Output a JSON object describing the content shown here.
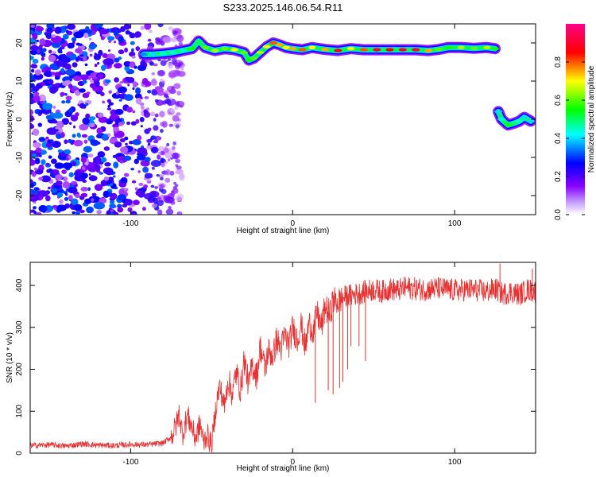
{
  "title": "S233.2025.146.06.54.R11",
  "chart_data": [
    {
      "type": "heatmap",
      "xlabel": "Height of straight line (km)",
      "ylabel": "Frequency (Hz)",
      "xlim": [
        -162,
        150
      ],
      "ylim": [
        -25,
        25
      ],
      "xticks": [
        -100,
        0,
        100
      ],
      "xtick_labels": [
        "-100",
        "0",
        "100"
      ],
      "yticks": [
        20,
        10,
        0,
        -10,
        -20
      ],
      "ytick_labels": [
        "20",
        "10",
        "0",
        "-10",
        "-20"
      ],
      "colorbar": {
        "label": "Normalized spectral amplitude",
        "ticks": [
          0.0,
          0.2,
          0.4,
          0.6,
          0.8
        ],
        "tick_labels": [
          "0.0",
          "0.2",
          "0.4",
          "0.6",
          "0.8"
        ],
        "range": [
          0,
          1
        ],
        "colormap": [
          "#ffffff",
          "#8800ff",
          "#0000ff",
          "#00ffff",
          "#00ff00",
          "#ffff00",
          "#ff0000",
          "#ff0088"
        ]
      },
      "noise_region": {
        "x": [
          -162,
          -68
        ],
        "y": [
          -25,
          25
        ],
        "amplitude_range": [
          0.05,
          0.35
        ]
      },
      "track": [
        {
          "x": -92,
          "y": 17.0,
          "a": 0.35
        },
        {
          "x": -86,
          "y": 17.0,
          "a": 0.4
        },
        {
          "x": -80,
          "y": 17.2,
          "a": 0.45
        },
        {
          "x": -74,
          "y": 17.5,
          "a": 0.45
        },
        {
          "x": -68,
          "y": 18.0,
          "a": 0.45
        },
        {
          "x": -62,
          "y": 18.5,
          "a": 0.55
        },
        {
          "x": -58,
          "y": 20.5,
          "a": 0.5
        },
        {
          "x": -54,
          "y": 18.8,
          "a": 0.6
        },
        {
          "x": -48,
          "y": 18.0,
          "a": 0.65
        },
        {
          "x": -42,
          "y": 18.5,
          "a": 0.6
        },
        {
          "x": -36,
          "y": 18.2,
          "a": 0.7
        },
        {
          "x": -30,
          "y": 17.5,
          "a": 0.6
        },
        {
          "x": -27,
          "y": 15.5,
          "a": 0.55
        },
        {
          "x": -24,
          "y": 16.0,
          "a": 0.6
        },
        {
          "x": -20,
          "y": 17.5,
          "a": 0.65
        },
        {
          "x": -16,
          "y": 19.0,
          "a": 0.7
        },
        {
          "x": -12,
          "y": 20.0,
          "a": 0.8
        },
        {
          "x": -8,
          "y": 19.5,
          "a": 0.75
        },
        {
          "x": -4,
          "y": 18.8,
          "a": 0.7
        },
        {
          "x": 0,
          "y": 18.5,
          "a": 0.75
        },
        {
          "x": 6,
          "y": 18.2,
          "a": 0.8
        },
        {
          "x": 12,
          "y": 18.8,
          "a": 0.7
        },
        {
          "x": 20,
          "y": 18.3,
          "a": 0.75
        },
        {
          "x": 28,
          "y": 18.0,
          "a": 0.85
        },
        {
          "x": 36,
          "y": 18.5,
          "a": 0.7
        },
        {
          "x": 44,
          "y": 18.2,
          "a": 0.8
        },
        {
          "x": 52,
          "y": 18.2,
          "a": 0.9
        },
        {
          "x": 60,
          "y": 18.2,
          "a": 0.85
        },
        {
          "x": 68,
          "y": 18.2,
          "a": 0.9
        },
        {
          "x": 76,
          "y": 18.2,
          "a": 0.9
        },
        {
          "x": 84,
          "y": 18.0,
          "a": 0.75
        },
        {
          "x": 90,
          "y": 18.3,
          "a": 0.6
        },
        {
          "x": 96,
          "y": 18.8,
          "a": 0.55
        },
        {
          "x": 104,
          "y": 18.8,
          "a": 0.65
        },
        {
          "x": 112,
          "y": 18.6,
          "a": 0.6
        },
        {
          "x": 120,
          "y": 18.8,
          "a": 0.65
        },
        {
          "x": 125,
          "y": 18.5,
          "a": 0.55
        }
      ],
      "track2": [
        {
          "x": 127,
          "y": 2.0,
          "a": 0.4
        },
        {
          "x": 129,
          "y": 0.0,
          "a": 0.45
        },
        {
          "x": 133,
          "y": -1.5,
          "a": 0.55
        },
        {
          "x": 137,
          "y": -1.0,
          "a": 0.5
        },
        {
          "x": 140,
          "y": -0.5,
          "a": 0.45
        },
        {
          "x": 143,
          "y": 0.5,
          "a": 0.4
        },
        {
          "x": 147,
          "y": -0.5,
          "a": 0.4
        }
      ]
    },
    {
      "type": "line",
      "xlabel": "Height of straight line (km)",
      "ylabel": "SNR (10 * v/v)",
      "xlim": [
        -162,
        150
      ],
      "ylim": [
        0,
        455
      ],
      "xticks": [
        -100,
        0,
        100
      ],
      "xtick_labels": [
        "-100",
        "0",
        "100"
      ],
      "yticks": [
        0,
        100,
        200,
        300,
        400
      ],
      "ytick_labels": [
        "0",
        "100",
        "200",
        "300",
        "400"
      ],
      "color": "#e83030",
      "series": [
        {
          "x": [
            -162,
            -150,
            -140,
            -130,
            -120,
            -110,
            -100,
            -90,
            -80,
            -75,
            -72,
            -70,
            -68,
            -65,
            -62,
            -60,
            -57,
            -55,
            -53,
            -50,
            -47,
            -45,
            -42,
            -40,
            -37,
            -35,
            -32,
            -30,
            -27,
            -25,
            -22,
            -20,
            -17,
            -15,
            -12,
            -10,
            -7,
            -5,
            -2,
            0,
            3,
            5,
            8,
            10,
            13,
            15,
            18,
            20,
            23,
            25,
            28,
            30,
            35,
            40,
            45,
            50,
            55,
            60,
            65,
            70,
            80,
            90,
            100,
            110,
            120,
            125,
            130,
            135,
            140,
            145,
            150
          ],
          "y": [
            18,
            20,
            17,
            22,
            19,
            18,
            21,
            20,
            24,
            38,
            65,
            95,
            45,
            90,
            60,
            35,
            70,
            25,
            45,
            20,
            120,
            160,
            110,
            175,
            140,
            195,
            150,
            225,
            160,
            210,
            185,
            255,
            200,
            245,
            230,
            270,
            250,
            280,
            260,
            300,
            270,
            310,
            250,
            310,
            290,
            335,
            300,
            350,
            330,
            365,
            360,
            370,
            375,
            380,
            385,
            390,
            385,
            392,
            388,
            395,
            390,
            393,
            388,
            390,
            385,
            392,
            380,
            385,
            378,
            390,
            385
          ]
        }
      ],
      "dips": [
        {
          "x": 14,
          "y": 120
        },
        {
          "x": 22,
          "y": 150
        },
        {
          "x": 25,
          "y": 140
        },
        {
          "x": 29,
          "y": 155
        },
        {
          "x": 31,
          "y": 170
        },
        {
          "x": 34,
          "y": 200
        },
        {
          "x": 36,
          "y": 255
        },
        {
          "x": 41,
          "y": 255
        },
        {
          "x": 45,
          "y": 220
        }
      ],
      "spikes": [
        {
          "x": 128,
          "y": 452
        },
        {
          "x": 148,
          "y": 440
        }
      ]
    }
  ]
}
